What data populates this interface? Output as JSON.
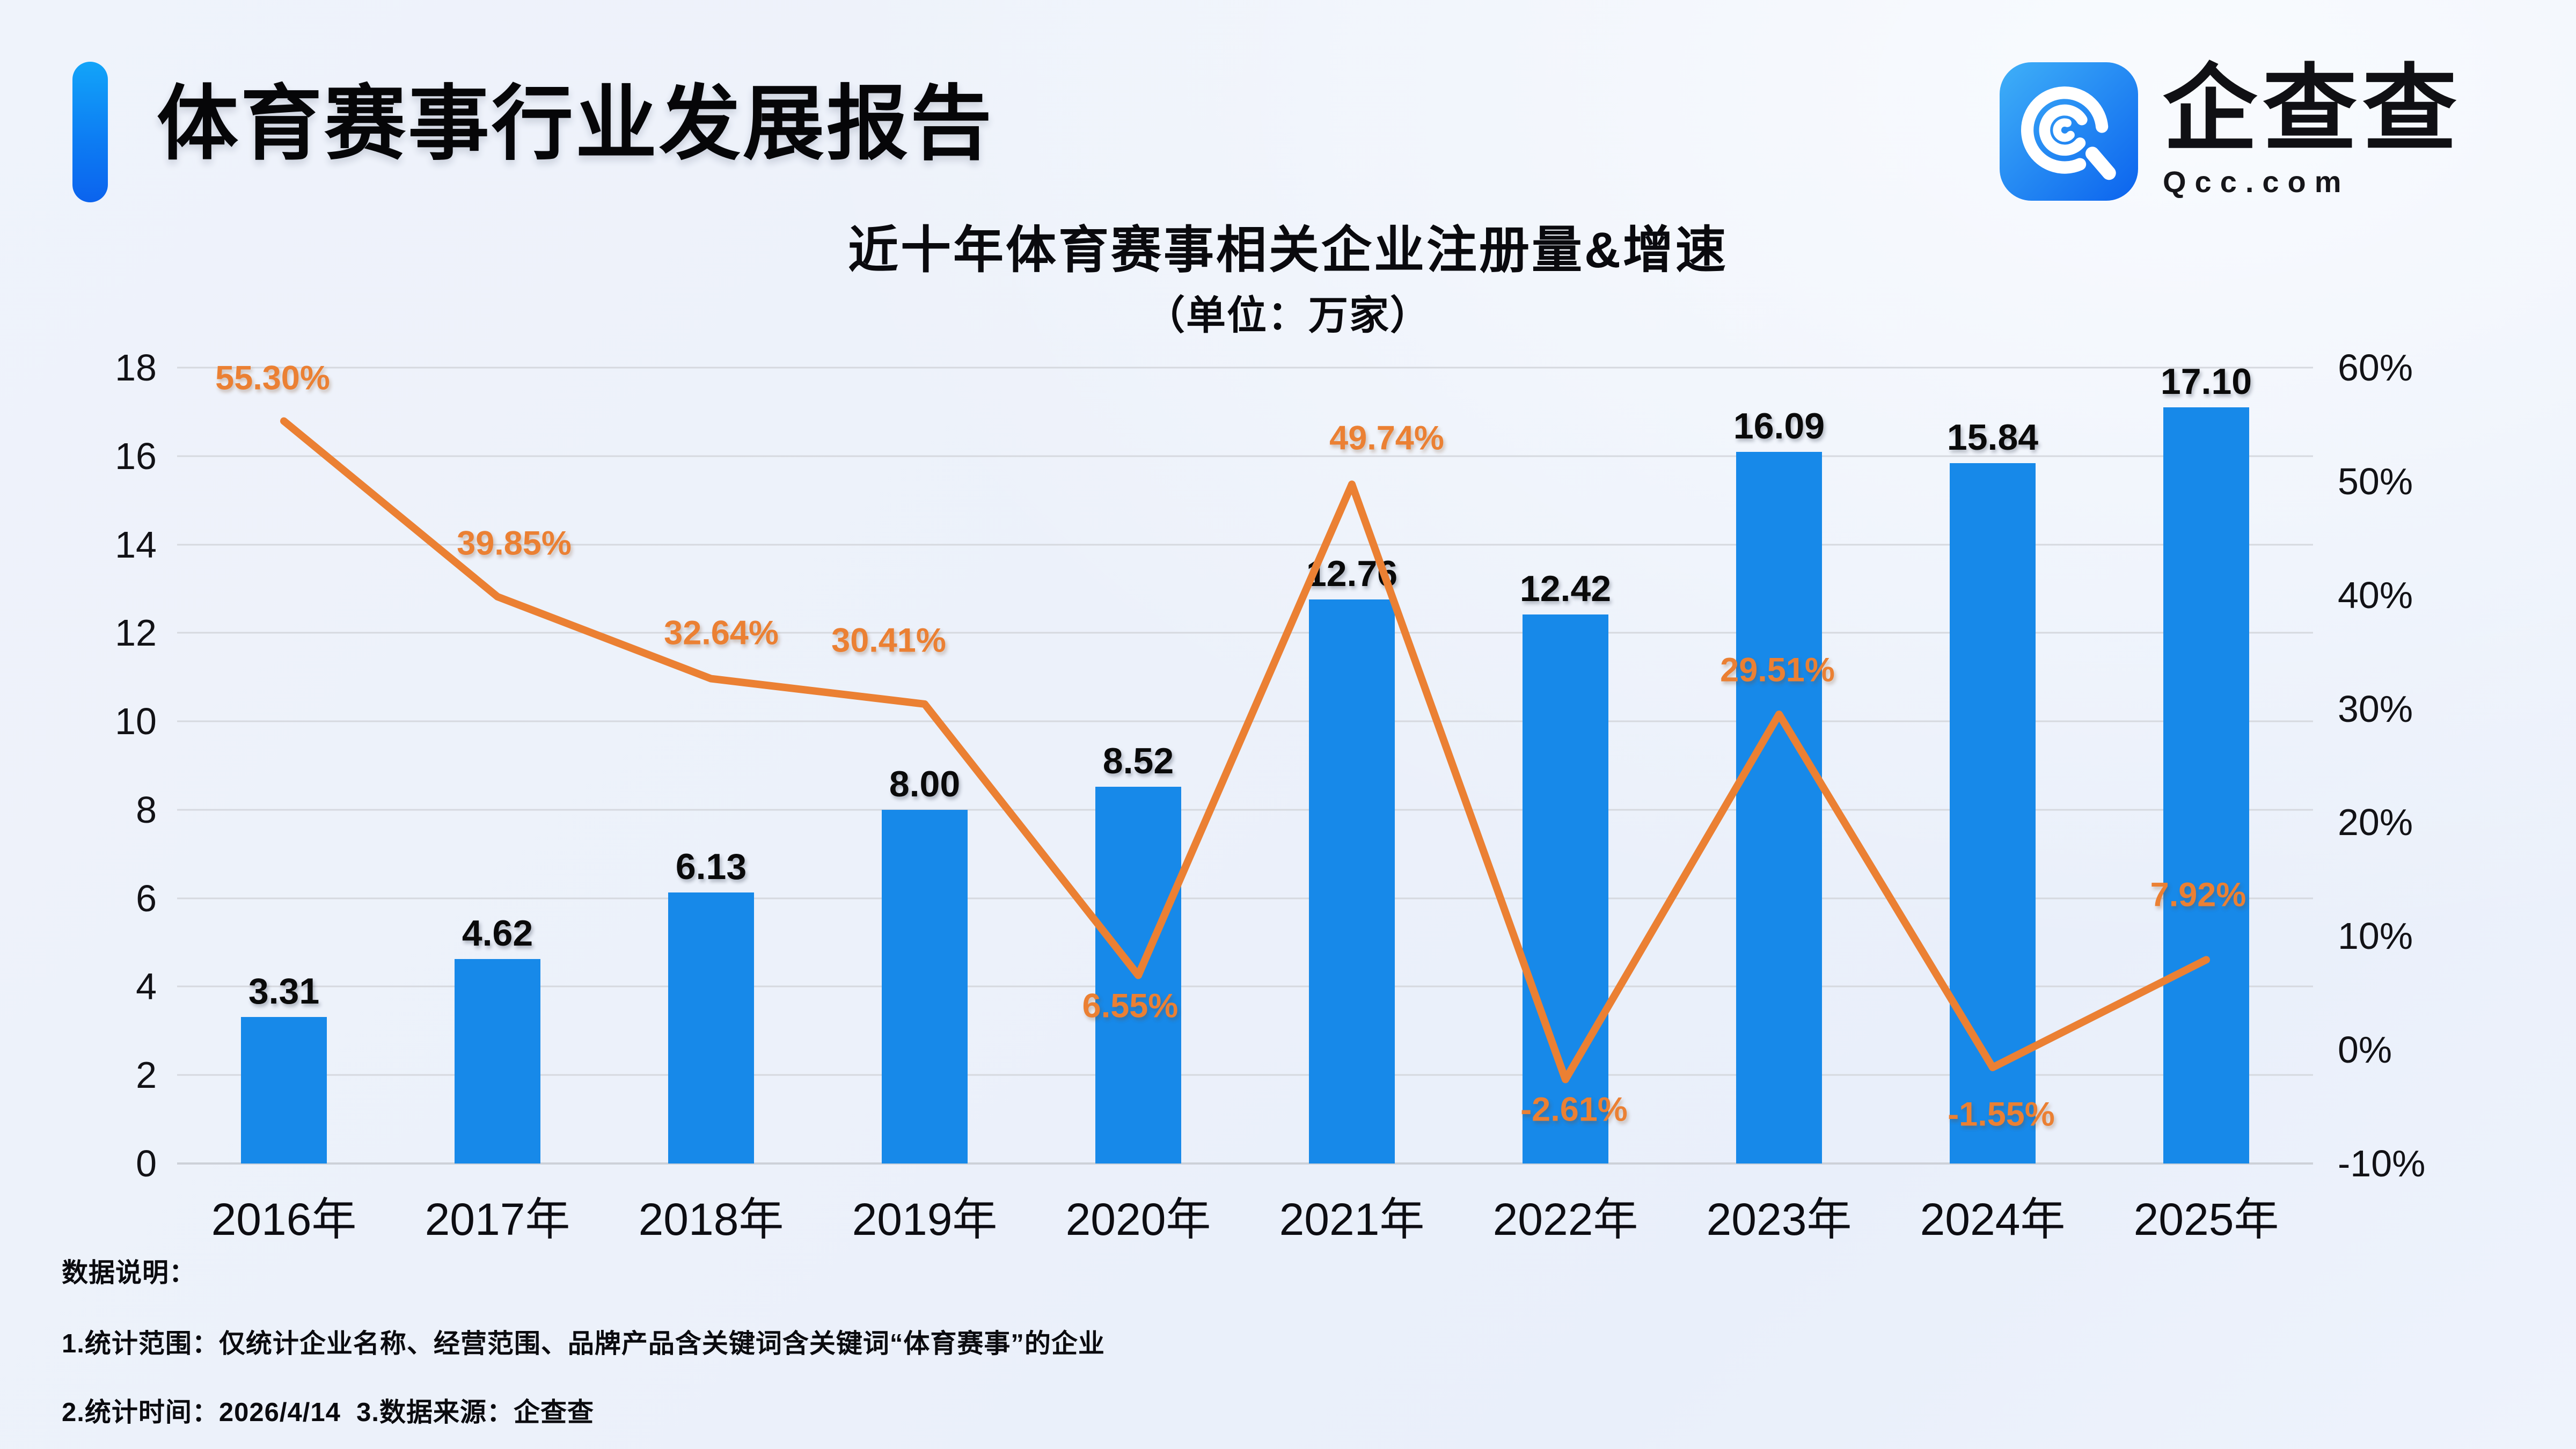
{
  "page": {
    "title": "体育赛事行业发展报告"
  },
  "logo": {
    "brand": "企查查",
    "domain": "Qcc.com"
  },
  "chart": {
    "title": "近十年体育赛事相关企业注册量&增速",
    "subtitle": "（单位：万家）"
  },
  "chart_data": {
    "type": "bar+line",
    "title": "近十年体育赛事相关企业注册量&增速",
    "unit": "万家",
    "categories": [
      "2016年",
      "2017年",
      "2018年",
      "2019年",
      "2020年",
      "2021年",
      "2022年",
      "2023年",
      "2024年",
      "2025年"
    ],
    "series": [
      {
        "name": "注册量",
        "type": "bar",
        "color": "#1789e9",
        "values": [
          3.31,
          4.62,
          6.13,
          8.0,
          8.52,
          12.76,
          12.42,
          16.09,
          15.84,
          17.1
        ],
        "labels": [
          "3.31",
          "4.62",
          "6.13",
          "8.00",
          "8.52",
          "12.76",
          "12.42",
          "16.09",
          "15.84",
          "17.10"
        ]
      },
      {
        "name": "增速",
        "type": "line",
        "color": "#eb8033",
        "values": [
          55.3,
          39.85,
          32.64,
          30.41,
          6.55,
          49.74,
          -2.61,
          29.51,
          -1.55,
          7.92
        ],
        "labels": [
          "55.30%",
          "39.85%",
          "32.64%",
          "30.41%",
          "6.55%",
          "49.74%",
          "-2.61%",
          "29.51%",
          "-1.55%",
          "7.92%"
        ],
        "label_offsets": [
          [
            -21,
            -80
          ],
          [
            31,
            -99
          ],
          [
            19,
            -85
          ],
          [
            -67,
            -118
          ],
          [
            -15,
            58
          ],
          [
            65,
            -85
          ],
          [
            16,
            57
          ],
          [
            -3,
            -82
          ],
          [
            16,
            88
          ],
          [
            -15,
            -120
          ]
        ]
      }
    ],
    "left_axis": {
      "min": 0,
      "max": 18,
      "step": 2,
      "ticks": [
        "18",
        "16",
        "14",
        "12",
        "10",
        "8",
        "6",
        "4",
        "2",
        "0"
      ]
    },
    "right_axis": {
      "min": -10,
      "max": 60,
      "step": 10,
      "ticks": [
        "60%",
        "50%",
        "40%",
        "30%",
        "20%",
        "10%",
        "0%",
        "-10%"
      ]
    },
    "grid": true,
    "legend": "none",
    "colors": {
      "bar": "#1789e9",
      "line": "#eb8033",
      "grid": "#d6d9df",
      "axis": "#cdd1d8"
    }
  },
  "notes": {
    "heading": "数据说明：",
    "line1": "1.统计范围：仅统计企业名称、经营范围、品牌产品含关键词含关键词“体育赛事”的企业",
    "line2": "2.统计时间：2026/4/14  3.数据来源：企查查"
  }
}
